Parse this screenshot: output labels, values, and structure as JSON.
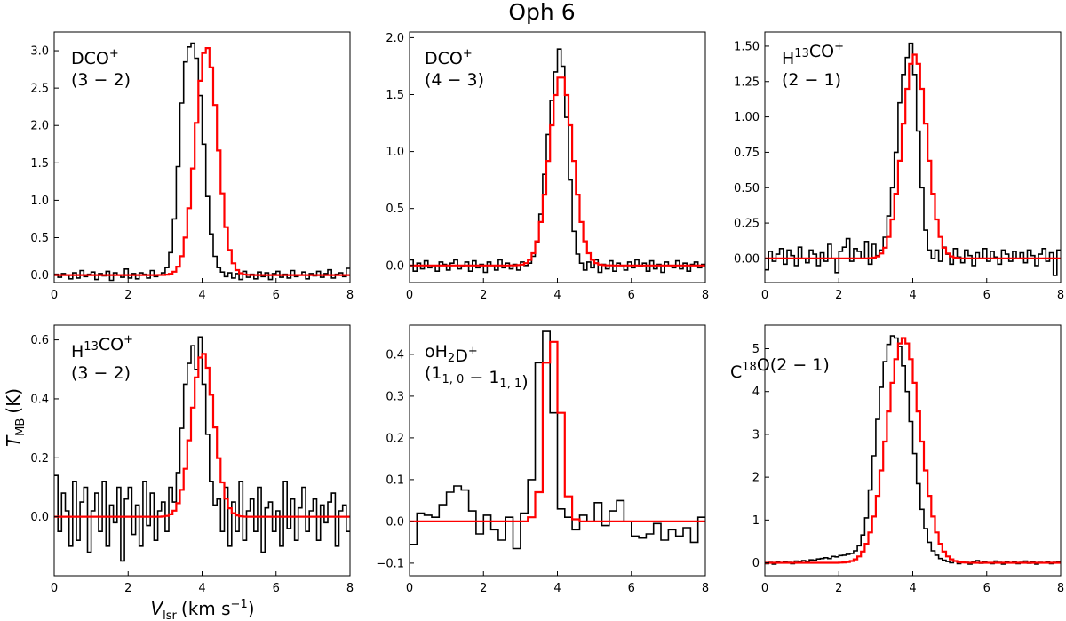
{
  "chart_data": {
    "title": "Oph 6",
    "xlabel_main": "V",
    "xlabel_sub": "lsr",
    "xlabel_unit": "(km s",
    "xlabel_exp": "−1",
    "xlabel_close": ")",
    "ylabel_main": "T",
    "ylabel_sub": "MB",
    "ylabel_unit": "(K)",
    "series_colors": {
      "observed": "#000000",
      "fit": "#ff0000"
    },
    "panels": [
      {
        "type": "line",
        "style": "step",
        "label_lines": [
          [
            "DCO",
            "sup:+"
          ],
          [
            "(3 − 2)"
          ]
        ],
        "xlim": [
          0,
          8
        ],
        "ylim": [
          -0.1,
          3.25
        ],
        "xticks": [
          0,
          2,
          4,
          6,
          8
        ],
        "xtick_labels": [
          "0",
          "2",
          "4",
          "6",
          "8"
        ],
        "yticks": [
          0,
          0.5,
          1.0,
          1.5,
          2.0,
          2.5,
          3.0
        ],
        "ytick_labels": [
          "0.0",
          "0.5",
          "1.0",
          "1.5",
          "2.0",
          "2.5",
          "3.0"
        ],
        "obs": {
          "x0": 0,
          "dx": 0.1,
          "values": [
            0.01,
            -0.03,
            0.02,
            0.0,
            -0.05,
            0.03,
            -0.04,
            0.06,
            -0.02,
            0.01,
            0.04,
            -0.06,
            0.02,
            -0.01,
            0.05,
            -0.07,
            0.03,
            0.0,
            -0.03,
            0.08,
            -0.04,
            0.02,
            -0.05,
            0.03,
            0.01,
            -0.04,
            0.06,
            -0.02,
            0.0,
            0.03,
            0.1,
            0.3,
            0.75,
            1.45,
            2.3,
            2.85,
            3.05,
            3.1,
            2.9,
            2.4,
            1.75,
            1.05,
            0.55,
            0.25,
            0.1,
            0.04,
            -0.02,
            0.03,
            -0.04,
            0.02,
            -0.06,
            0.05,
            -0.03,
            0.01,
            -0.05,
            0.04,
            -0.02,
            0.03,
            -0.06,
            0.02,
            0.05,
            -0.03,
            0.01,
            -0.04,
            0.06,
            -0.02,
            0.0,
            0.04,
            -0.05,
            0.02,
            -0.01,
            0.05,
            -0.03,
            0.02,
            0.07,
            -0.04,
            0.01,
            0.03,
            -0.02,
            0.09
          ]
        },
        "fit": {
          "type": "gaussian",
          "amp": 3.05,
          "center": 4.12,
          "sigma": 0.3,
          "offset": 0.0
        }
      },
      {
        "type": "line",
        "style": "step",
        "label_lines": [
          [
            "DCO",
            "sup:+"
          ],
          [
            "(4 − 3)"
          ]
        ],
        "xlim": [
          0,
          8
        ],
        "ylim": [
          -0.15,
          2.05
        ],
        "xticks": [
          0,
          2,
          4,
          6,
          8
        ],
        "xtick_labels": [
          "0",
          "2",
          "4",
          "6",
          "8"
        ],
        "yticks": [
          0,
          0.5,
          1.0,
          1.5,
          2.0
        ],
        "ytick_labels": [
          "0.0",
          "0.5",
          "1.0",
          "1.5",
          "2.0"
        ],
        "obs": {
          "x0": 0,
          "dx": 0.1,
          "values": [
            0.05,
            -0.05,
            0.02,
            -0.03,
            0.04,
            -0.02,
            0.0,
            -0.05,
            0.03,
            0.01,
            -0.04,
            0.02,
            0.05,
            -0.03,
            -0.01,
            0.03,
            -0.05,
            0.04,
            -0.02,
            0.01,
            -0.06,
            0.03,
            0.0,
            -0.04,
            0.05,
            -0.02,
            0.02,
            -0.03,
            0.01,
            -0.04,
            0.03,
            0.0,
            0.02,
            0.08,
            0.2,
            0.45,
            0.8,
            1.15,
            1.45,
            1.7,
            1.9,
            1.75,
            1.3,
            0.75,
            0.3,
            0.1,
            0.02,
            -0.04,
            0.03,
            -0.02,
            0.05,
            -0.06,
            0.01,
            -0.03,
            0.04,
            -0.05,
            0.02,
            0.0,
            -0.04,
            0.03,
            -0.02,
            0.05,
            -0.01,
            0.02,
            -0.05,
            0.04,
            -0.03,
            0.01,
            -0.06,
            0.03,
            0.0,
            -0.02,
            0.04,
            -0.03,
            0.02,
            -0.05,
            0.01,
            0.03,
            -0.02,
            0.01
          ]
        },
        "fit": {
          "type": "gaussian",
          "amp": 1.67,
          "center": 4.1,
          "sigma": 0.32,
          "offset": 0.0
        }
      },
      {
        "type": "line",
        "style": "step",
        "label_lines": [
          [
            "H",
            "sup:13",
            "CO",
            "sup:+"
          ],
          [
            "(2 − 1)"
          ]
        ],
        "xlim": [
          0,
          8
        ],
        "ylim": [
          -0.17,
          1.6
        ],
        "xticks": [
          0,
          2,
          4,
          6,
          8
        ],
        "xtick_labels": [
          "0",
          "2",
          "4",
          "6",
          "8"
        ],
        "yticks": [
          0,
          0.25,
          0.5,
          0.75,
          1.0,
          1.25,
          1.5
        ],
        "ytick_labels": [
          "0.00",
          "0.25",
          "0.50",
          "0.75",
          "1.00",
          "1.25",
          "1.50"
        ],
        "obs": {
          "x0": 0,
          "dx": 0.1,
          "values": [
            -0.08,
            0.05,
            -0.02,
            0.03,
            0.07,
            -0.04,
            0.06,
            0.02,
            -0.05,
            0.08,
            0.0,
            -0.03,
            0.06,
            0.03,
            -0.05,
            0.04,
            -0.02,
            0.1,
            0.0,
            -0.1,
            0.05,
            0.08,
            0.14,
            -0.02,
            0.07,
            0.05,
            0.0,
            0.12,
            -0.04,
            0.1,
            0.02,
            0.06,
            0.15,
            0.3,
            0.5,
            0.75,
            1.1,
            1.3,
            1.42,
            1.52,
            1.3,
            0.9,
            0.5,
            0.2,
            0.06,
            0.0,
            0.06,
            -0.02,
            0.08,
            0.03,
            -0.04,
            0.07,
            0.01,
            -0.03,
            0.06,
            0.02,
            -0.05,
            0.04,
            0.0,
            0.07,
            -0.02,
            0.05,
            0.01,
            -0.04,
            0.06,
            0.03,
            -0.02,
            0.05,
            0.0,
            0.04,
            -0.03,
            0.06,
            0.02,
            -0.05,
            0.03,
            0.07,
            -0.02,
            0.04,
            -0.12,
            0.06
          ]
        },
        "fit": {
          "type": "gaussian",
          "amp": 1.44,
          "center": 4.05,
          "sigma": 0.33,
          "offset": 0.0
        }
      },
      {
        "type": "line",
        "style": "step",
        "label_lines": [
          [
            "H",
            "sup:13",
            "CO",
            "sup:+"
          ],
          [
            "(3 − 2)"
          ]
        ],
        "xlim": [
          0,
          8
        ],
        "ylim": [
          -0.2,
          0.65
        ],
        "xticks": [
          0,
          2,
          4,
          6,
          8
        ],
        "xtick_labels": [
          "0",
          "2",
          "4",
          "6",
          "8"
        ],
        "yticks": [
          0,
          0.2,
          0.4,
          0.6
        ],
        "ytick_labels": [
          "0.0",
          "0.2",
          "0.4",
          "0.6"
        ],
        "obs": {
          "x0": 0,
          "dx": 0.1,
          "values": [
            0.14,
            -0.05,
            0.08,
            0.02,
            -0.1,
            0.12,
            -0.08,
            0.05,
            0.1,
            -0.12,
            0.02,
            0.08,
            -0.05,
            0.12,
            -0.1,
            0.04,
            -0.02,
            0.1,
            -0.15,
            0.06,
            0.1,
            -0.06,
            0.04,
            -0.1,
            0.12,
            -0.03,
            0.08,
            -0.08,
            0.02,
            0.05,
            -0.05,
            0.1,
            0.05,
            0.15,
            0.3,
            0.45,
            0.52,
            0.58,
            0.5,
            0.61,
            0.45,
            0.28,
            0.12,
            0.04,
            0.06,
            -0.05,
            0.1,
            -0.1,
            0.05,
            -0.05,
            0.12,
            -0.08,
            0.02,
            0.06,
            -0.05,
            0.1,
            -0.12,
            0.03,
            0.05,
            -0.05,
            0.02,
            -0.1,
            0.12,
            -0.04,
            0.06,
            -0.08,
            0.03,
            0.1,
            -0.05,
            0.02,
            0.06,
            -0.08,
            0.04,
            -0.02,
            0.05,
            0.08,
            -0.1,
            0.02,
            0.04,
            -0.05
          ]
        },
        "fit": {
          "type": "gaussian",
          "amp": 0.555,
          "center": 4.02,
          "sigma": 0.3,
          "offset": 0.0
        }
      },
      {
        "type": "line",
        "style": "step",
        "label_lines": [
          [
            "oH",
            "sub:2",
            "D",
            "sup:+"
          ],
          [
            "(1",
            "sub:1, 0",
            " − 1",
            "sub:1, 1",
            ")"
          ]
        ],
        "xlim": [
          0,
          8
        ],
        "ylim": [
          -0.13,
          0.47
        ],
        "xticks": [
          0,
          2,
          4,
          6,
          8
        ],
        "xtick_labels": [
          "0",
          "2",
          "4",
          "6",
          "8"
        ],
        "yticks": [
          -0.1,
          0.0,
          0.1,
          0.2,
          0.3,
          0.4
        ],
        "ytick_labels": [
          "−0.1",
          "0.0",
          "0.1",
          "0.2",
          "0.3",
          "0.4"
        ],
        "obs": {
          "x0": 0,
          "dx": 0.2,
          "values": [
            -0.055,
            0.02,
            0.015,
            0.01,
            0.04,
            0.07,
            0.085,
            0.075,
            0.025,
            -0.03,
            0.015,
            -0.02,
            -0.045,
            0.01,
            -0.065,
            0.02,
            0.1,
            0.38,
            0.455,
            0.26,
            0.03,
            0.01,
            -0.02,
            0.015,
            0.0,
            0.045,
            -0.01,
            0.025,
            0.05,
            0.0,
            -0.035,
            -0.04,
            -0.03,
            -0.005,
            -0.045,
            -0.02,
            -0.035,
            -0.015,
            -0.05,
            0.01
          ]
        },
        "fit": {
          "type": "binned",
          "x0": 0,
          "dx": 0.2,
          "values": [
            0,
            0,
            0,
            0,
            0,
            0,
            0,
            0,
            0,
            0,
            0,
            0,
            0,
            0,
            0,
            0,
            0.01,
            0.07,
            0.38,
            0.43,
            0.26,
            0.06,
            0.005,
            0,
            0,
            0,
            0,
            0,
            0,
            0,
            0,
            0,
            0,
            0,
            0,
            0,
            0,
            0,
            0,
            0
          ]
        }
      },
      {
        "type": "line",
        "style": "step",
        "label_lines": [
          [
            "C",
            "sup:18",
            "O(2 − 1)"
          ]
        ],
        "xlim": [
          0,
          8
        ],
        "ylim": [
          -0.3,
          5.55
        ],
        "xticks": [
          0,
          2,
          4,
          6,
          8
        ],
        "xtick_labels": [
          "0",
          "2",
          "4",
          "6",
          "8"
        ],
        "yticks": [
          0,
          1,
          2,
          3,
          4,
          5
        ],
        "ytick_labels": [
          "0",
          "1",
          "2",
          "3",
          "4",
          "5"
        ],
        "obs": {
          "x0": 0,
          "dx": 0.1,
          "values": [
            -0.02,
            0.01,
            -0.03,
            0.02,
            0.0,
            0.03,
            0.01,
            -0.02,
            0.04,
            0.02,
            0.05,
            0.03,
            0.07,
            0.06,
            0.09,
            0.1,
            0.12,
            0.1,
            0.15,
            0.14,
            0.17,
            0.18,
            0.2,
            0.22,
            0.28,
            0.4,
            0.65,
            1.05,
            1.7,
            2.5,
            3.35,
            4.1,
            4.7,
            5.1,
            5.3,
            5.25,
            5.05,
            4.6,
            4.0,
            3.3,
            2.55,
            1.85,
            1.25,
            0.8,
            0.48,
            0.28,
            0.18,
            0.1,
            0.06,
            0.03,
            0.0,
            0.04,
            -0.02,
            0.03,
            0.01,
            -0.03,
            0.02,
            0.05,
            -0.01,
            0.03,
            0.0,
            -0.02,
            0.04,
            0.01,
            -0.03,
            0.02,
            0.0,
            0.03,
            -0.02,
            0.01,
            0.04,
            -0.01,
            0.02,
            -0.03,
            0.01,
            0.0,
            0.03,
            -0.02,
            0.01,
            0.02
          ]
        },
        "fit": {
          "type": "gaussian",
          "amp": 5.25,
          "center": 3.75,
          "sigma": 0.45,
          "offset": 0.0
        }
      }
    ]
  }
}
